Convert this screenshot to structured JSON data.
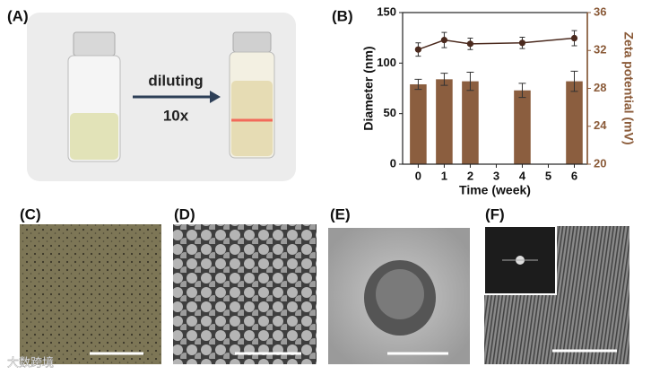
{
  "panels": {
    "a": {
      "label": "(A)",
      "arrow_text": "diluting",
      "factor": "10x"
    },
    "b": {
      "label": "(B)"
    },
    "c": {
      "label": "(C)"
    },
    "d": {
      "label": "(D)"
    },
    "e": {
      "label": "(E)"
    },
    "f": {
      "label": "(F)"
    }
  },
  "watermark": "大数跨境",
  "chart_data": {
    "type": "bar",
    "x": [
      0,
      1,
      2,
      4,
      6
    ],
    "xlim": [
      -0.6,
      6.5
    ],
    "xticks": [
      0,
      1,
      2,
      3,
      4,
      5,
      6
    ],
    "xlabel": "Time (week)",
    "ylabel": "Diameter (nm)",
    "ylim": [
      0,
      150
    ],
    "yticks": [
      0,
      50,
      100,
      150
    ],
    "y2label": "Zeta potential (mV)",
    "y2lim": [
      20,
      36
    ],
    "y2ticks": [
      20,
      24,
      28,
      32,
      36
    ],
    "y2color": "#8a5a38",
    "series": [
      {
        "kind": "bar",
        "color": "#8b5e3f",
        "values": [
          79,
          84,
          82,
          73,
          82
        ],
        "errors": [
          5,
          6,
          9,
          7,
          10
        ]
      },
      {
        "kind": "line",
        "axis": "y2",
        "color": "#4b2a1e",
        "values": [
          32.1,
          33.1,
          32.7,
          32.8,
          33.3
        ],
        "errors": [
          0.7,
          0.8,
          0.6,
          0.6,
          0.8
        ]
      }
    ]
  }
}
